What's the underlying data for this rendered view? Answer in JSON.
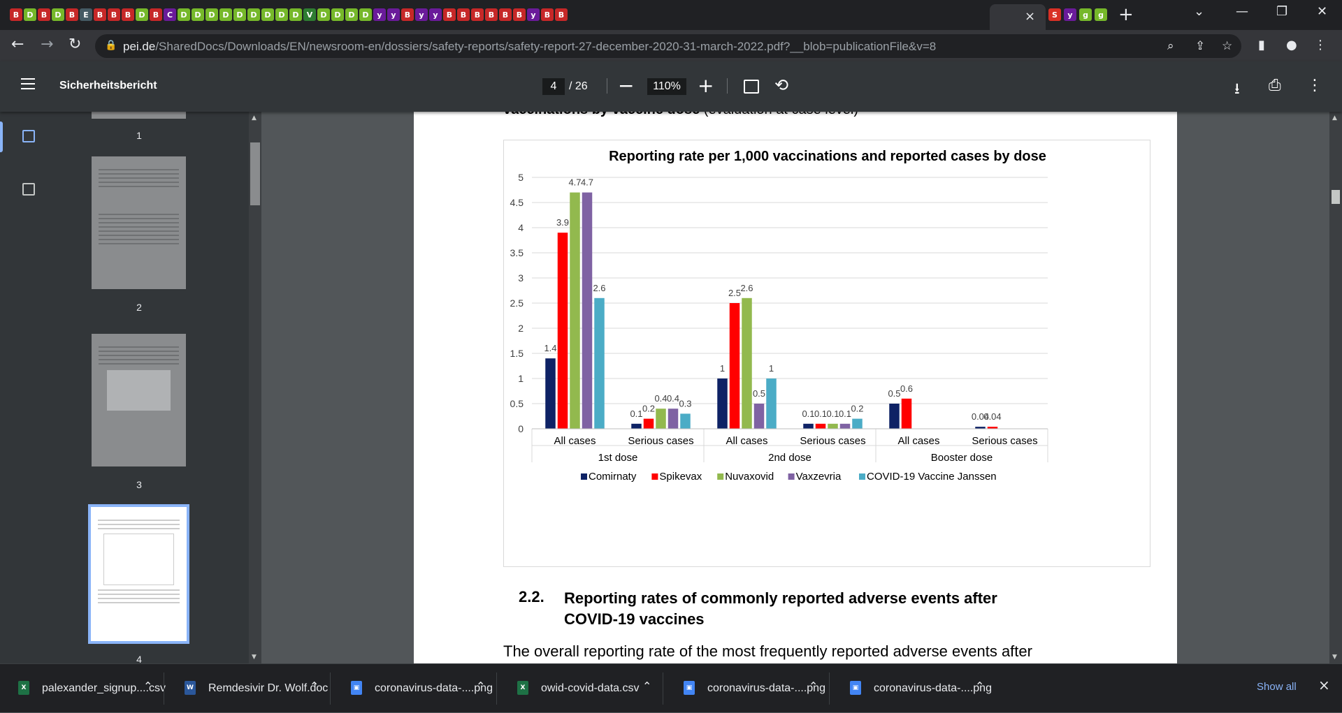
{
  "browser": {
    "tab_favicons": [
      "B",
      "D",
      "B",
      "D",
      "B",
      "E",
      "B",
      "B",
      "B",
      "D",
      "B",
      "C",
      "D",
      "D",
      "D",
      "D",
      "D",
      "D",
      "D",
      "D",
      "D",
      "V",
      "D",
      "D",
      "D",
      "D",
      "y",
      "y",
      "B",
      "y",
      "y",
      "B",
      "B",
      "B",
      "B",
      "B",
      "B",
      "y",
      "B",
      "B"
    ],
    "tab_close": "×",
    "new_tab": "+",
    "extra_favicons": [
      "S",
      "y",
      "g",
      "g"
    ],
    "url_host": "pei.de",
    "url_path": "/SharedDocs/Downloads/EN/newsroom-en/dossiers/safety-reports/safety-report-27-december-2020-31-march-2022.pdf?__blob=publicationFile&v=8",
    "colors": {
      "tabstrip": "#202124",
      "toolbar": "#35363a",
      "accent": "#8ab4f8"
    }
  },
  "viewer": {
    "title": "Sicherheitsbericht",
    "page_current": "4",
    "page_total": "/ 26",
    "zoom": "110%",
    "thumbnails": [
      {
        "label": "1"
      },
      {
        "label": "2"
      },
      {
        "label": "3"
      },
      {
        "label": "4"
      }
    ]
  },
  "document": {
    "heading_bold": "vaccinations by vaccine dose",
    "heading_normal": " (evaluation at case level)",
    "section_number": "2.2.",
    "section_title": "Reporting rates of commonly reported adverse events after COVID-19 vaccines",
    "body_text": "The overall reporting rate of the most frequently reported adverse events after"
  },
  "chart_data": {
    "type": "bar",
    "title": "Reporting rate per 1,000 vaccinations and reported cases by dose",
    "ylim": [
      0,
      5
    ],
    "yticks": [
      "0",
      "0.5",
      "1",
      "1.5",
      "2",
      "2.5",
      "3",
      "3.5",
      "4",
      "4.5",
      "5"
    ],
    "grid": true,
    "legend_position": "bottom",
    "groups": [
      {
        "label": "1st dose",
        "categories": [
          "All cases",
          "Serious cases"
        ]
      },
      {
        "label": "2nd dose",
        "categories": [
          "All cases",
          "Serious cases"
        ]
      },
      {
        "label": "Booster dose",
        "categories": [
          "All cases",
          "Serious cases"
        ]
      }
    ],
    "series": [
      {
        "name": "Comirnaty",
        "color": "#0e2265",
        "values": [
          1.4,
          0.1,
          1.0,
          0.1,
          0.5,
          0.04
        ],
        "labels": [
          "1.4",
          "0.1",
          "1",
          "0.1",
          "0.5",
          "0.04"
        ]
      },
      {
        "name": "Spikevax",
        "color": "#ff0000",
        "values": [
          3.9,
          0.2,
          2.5,
          0.1,
          0.6,
          0.04
        ],
        "labels": [
          "3.9",
          "0.2",
          "2.5",
          "0.1",
          "0.6",
          "0.04"
        ]
      },
      {
        "name": "Nuvaxovid",
        "color": "#92b94e",
        "values": [
          4.7,
          0.4,
          2.6,
          0.1,
          null,
          null
        ],
        "labels": [
          "4.7",
          "0.4",
          "2.6",
          "0.1",
          "",
          ""
        ]
      },
      {
        "name": "Vaxzevria",
        "color": "#7f62a3",
        "values": [
          4.7,
          0.4,
          0.5,
          0.1,
          null,
          null
        ],
        "labels": [
          "4.7",
          "0.4",
          "0.5",
          "0.1",
          "",
          ""
        ]
      },
      {
        "name": "COVID-19 Vaccine Janssen",
        "color": "#4bacc6",
        "values": [
          2.6,
          0.3,
          1.0,
          0.2,
          null,
          null
        ],
        "labels": [
          "2.6",
          "0.3",
          "1",
          "0.2",
          "",
          ""
        ]
      }
    ]
  },
  "downloads": {
    "items": [
      {
        "name": "palexander_signup....csv",
        "type": "xlsx",
        "color": "#1e7145"
      },
      {
        "name": "Remdesivir Dr. Wolf.doc",
        "type": "doc",
        "color": "#2b579a"
      },
      {
        "name": "coronavirus-data-....png",
        "type": "png",
        "color": "#4285f4"
      },
      {
        "name": "owid-covid-data.csv",
        "type": "xlsx",
        "color": "#1e7145"
      },
      {
        "name": "coronavirus-data-....png",
        "type": "png",
        "color": "#4285f4"
      },
      {
        "name": "coronavirus-data-....png",
        "type": "png",
        "color": "#4285f4"
      }
    ],
    "show_all": "Show all",
    "close": "×"
  }
}
